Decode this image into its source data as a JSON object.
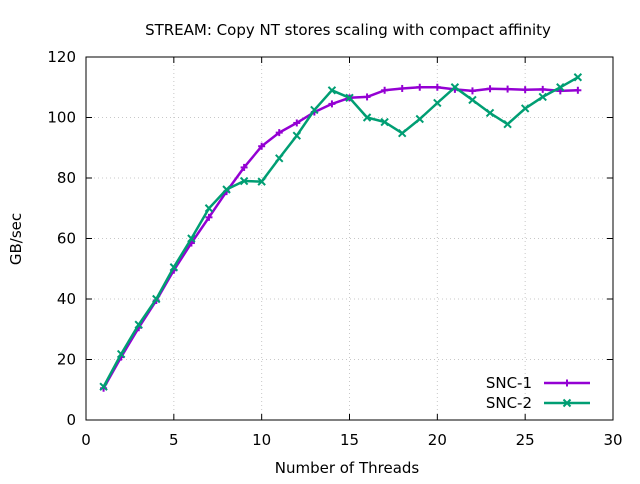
{
  "chart_data": {
    "type": "line",
    "title": "STREAM: Copy NT stores scaling with compact affinity",
    "xlabel": "Number of Threads",
    "ylabel": "GB/sec",
    "xlim": [
      0,
      30
    ],
    "ylim": [
      0,
      120
    ],
    "xticks": [
      0,
      5,
      10,
      15,
      20,
      25,
      30
    ],
    "yticks": [
      0,
      20,
      40,
      60,
      80,
      100,
      120
    ],
    "grid": true,
    "legend_position": "bottom-right",
    "series": [
      {
        "name": "SNC-1",
        "color": "#9400d3",
        "marker": "plus",
        "x": [
          1,
          2,
          3,
          4,
          5,
          6,
          7,
          8,
          9,
          10,
          11,
          12,
          13,
          14,
          15,
          16,
          17,
          18,
          19,
          20,
          21,
          22,
          23,
          24,
          25,
          26,
          27,
          28
        ],
        "y": [
          10.5,
          20.8,
          30.5,
          39.5,
          49.5,
          58.5,
          67,
          75.5,
          83.5,
          90.5,
          95,
          98.2,
          101.8,
          104.5,
          106.5,
          106.8,
          109,
          109.6,
          110,
          110,
          109.3,
          108.8,
          109.5,
          109.4,
          109.2,
          109.3,
          108.8,
          109
        ]
      },
      {
        "name": "SNC-2",
        "color": "#009e73",
        "marker": "cross",
        "x": [
          1,
          2,
          3,
          4,
          5,
          6,
          7,
          8,
          9,
          10,
          11,
          12,
          13,
          14,
          15,
          16,
          17,
          18,
          19,
          20,
          21,
          22,
          23,
          24,
          25,
          26,
          27,
          28
        ],
        "y": [
          11,
          21.8,
          31.5,
          40,
          50.5,
          60,
          70,
          76.2,
          79,
          78.8,
          86.5,
          94,
          102.5,
          109,
          106.5,
          100,
          98.5,
          94.8,
          99.5,
          104.8,
          110,
          105.8,
          101.5,
          97.8,
          103,
          106.8,
          110,
          113.3
        ]
      }
    ]
  }
}
